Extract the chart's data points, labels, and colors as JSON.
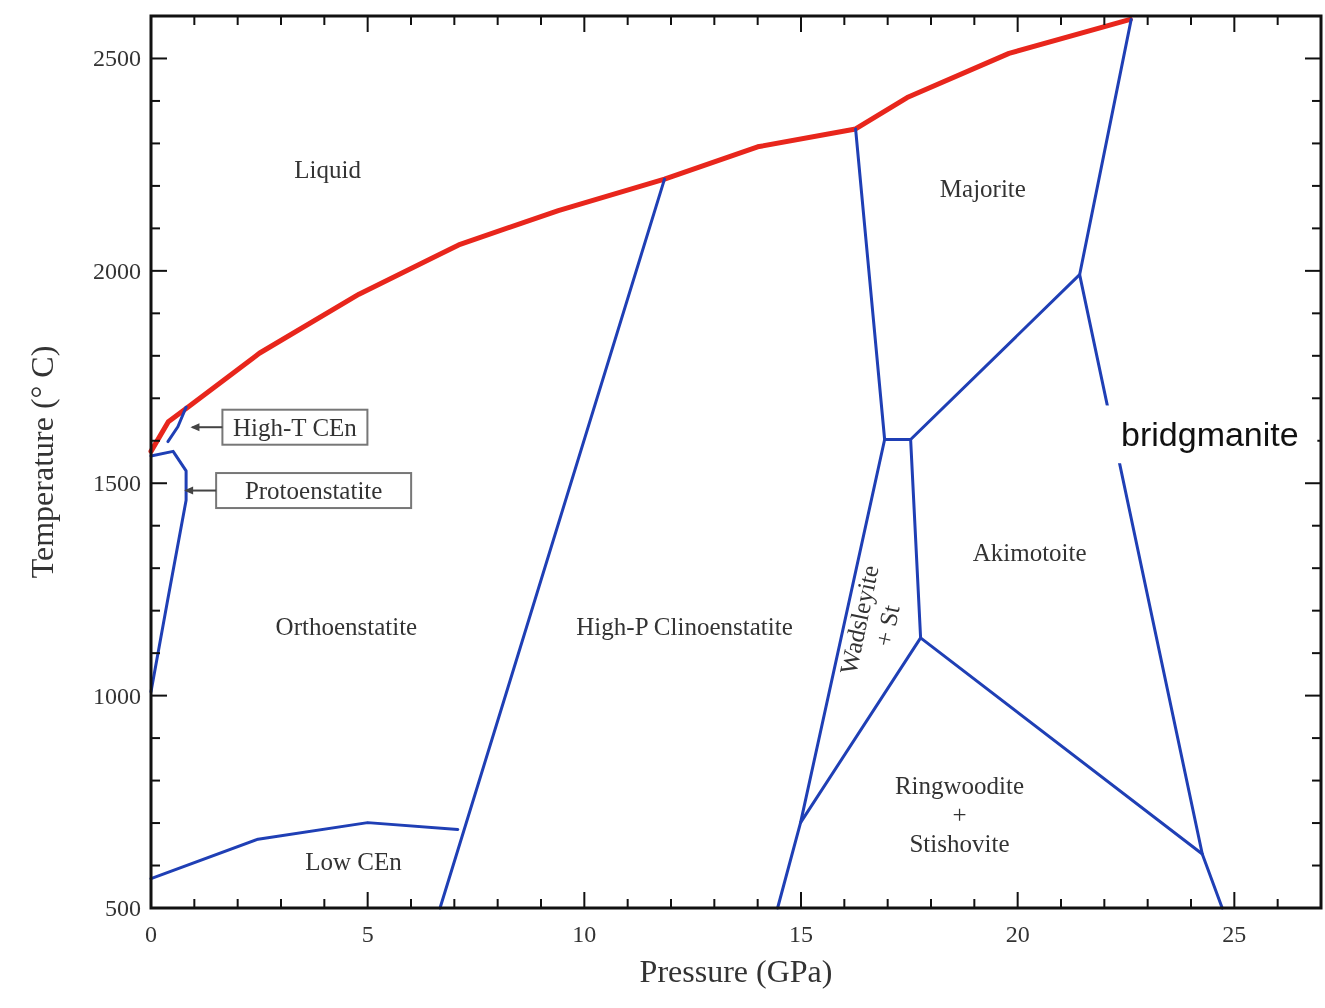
{
  "chart_data": {
    "type": "line",
    "xlabel": "Pressure  (GPa)",
    "ylabel": "Temperature  (° C)",
    "xlim": [
      0,
      27
    ],
    "ylim": [
      500,
      2600
    ],
    "xticks": [
      0,
      {
        "value": 1,
        "label": null
      },
      {
        "value": 2,
        "label": null
      },
      {
        "value": 3,
        "label": null
      },
      {
        "value": 4,
        "label": null
      },
      5,
      {
        "value": 6,
        "label": null
      },
      {
        "value": 7,
        "label": null
      },
      {
        "value": 8,
        "label": null
      },
      {
        "value": 9,
        "label": null
      },
      10,
      {
        "value": 11,
        "label": null
      },
      {
        "value": 12,
        "label": null
      },
      {
        "value": 13,
        "label": null
      },
      {
        "value": 14,
        "label": null
      },
      15,
      {
        "value": 16,
        "label": null
      },
      {
        "value": 17,
        "label": null
      },
      {
        "value": 18,
        "label": null
      },
      {
        "value": 19,
        "label": null
      },
      20,
      {
        "value": 21,
        "label": null
      },
      {
        "value": 22,
        "label": null
      },
      {
        "value": 23,
        "label": null
      },
      {
        "value": 24,
        "label": null
      },
      25,
      {
        "value": 26,
        "label": null
      }
    ],
    "yticks": [
      500,
      {
        "value": 600,
        "label": null
      },
      {
        "value": 700,
        "label": null
      },
      {
        "value": 800,
        "label": null
      },
      {
        "value": 900,
        "label": null
      },
      1000,
      {
        "value": 1100,
        "label": null
      },
      {
        "value": 1200,
        "label": null
      },
      {
        "value": 1300,
        "label": null
      },
      {
        "value": 1400,
        "label": null
      },
      1500,
      {
        "value": 1600,
        "label": null
      },
      {
        "value": 1700,
        "label": null
      },
      {
        "value": 1800,
        "label": null
      },
      {
        "value": 1900,
        "label": null
      },
      2000,
      {
        "value": 2100,
        "label": null
      },
      {
        "value": 2200,
        "label": null
      },
      {
        "value": 2300,
        "label": null
      },
      {
        "value": 2400,
        "label": null
      },
      2500
    ],
    "grid": false,
    "series": [
      {
        "color": "#e8261c",
        "x": [
          0,
          0.4,
          0.85,
          2.5,
          4.8,
          7.1,
          9.4,
          11.85,
          14,
          16.26,
          17.45,
          19.8,
          22.6
        ],
        "values": [
          1575,
          1645,
          1679,
          1806,
          1945,
          2061,
          2142,
          2216,
          2292,
          2334,
          2408,
          2512,
          2592
        ]
      },
      {
        "color": "#1f3fb5",
        "x": [
          0,
          0.39,
          0.81,
          0.81,
          0.51,
          0
        ],
        "values": [
          1009,
          1228,
          1460,
          1529,
          1575,
          1564
        ]
      },
      {
        "color": "#1f3fb5",
        "x": [
          0.39,
          0.62,
          0.81
        ],
        "values": [
          1598,
          1633,
          1679
        ]
      },
      {
        "color": "#1f3fb5",
        "x": [
          0,
          2.47,
          5,
          7.08
        ],
        "values": [
          569,
          662,
          701,
          685
        ]
      },
      {
        "color": "#1f3fb5",
        "x": [
          6.67,
          11.85
        ],
        "values": [
          500,
          2216
        ]
      },
      {
        "color": "#1f3fb5",
        "x": [
          14.46,
          14.99,
          16.93,
          16.26
        ],
        "values": [
          500,
          701,
          1603,
          2334
        ]
      },
      {
        "color": "#1f3fb5",
        "x": [
          16.93,
          17.53,
          21.43,
          22.62
        ],
        "values": [
          1603,
          1603,
          1991,
          2592
        ]
      },
      {
        "color": "#1f3fb5",
        "x": [
          17.53,
          17.76
        ],
        "values": [
          1603,
          1136
        ]
      },
      {
        "color": "#1f3fb5",
        "x": [
          14.99,
          17.76,
          24.26
        ],
        "values": [
          701,
          1136,
          627
        ]
      },
      {
        "color": "#1f3fb5",
        "x": [
          21.43,
          24.26,
          24.72
        ],
        "values": [
          1991,
          627,
          500
        ]
      }
    ],
    "annotations": [
      "Liquid",
      "Majorite",
      "Akimotoite",
      "Orthoenstatite",
      "High-P Clinoenstatite",
      "Wadsleyite\n+ St",
      "Ringwoodite\n+\nStishovite",
      "Low CEn",
      "High-T CEn",
      "Protoenstatite",
      "bridgmanite"
    ]
  }
}
